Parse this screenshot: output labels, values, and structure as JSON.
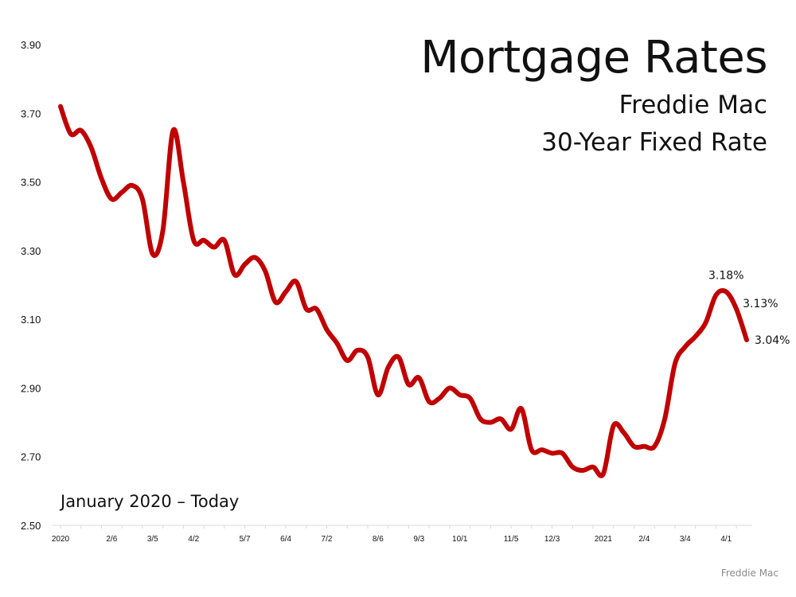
{
  "header": {
    "title": "Mortgage Rates",
    "subtitle_line1": "Freddie Mac",
    "subtitle_line2": "30-Year Fixed Rate"
  },
  "note": "January 2020 – Today",
  "source": "Freddie Mac",
  "colors": {
    "line": "#c00000",
    "axis": "#d9d9d9",
    "text": "#111111"
  },
  "chart_data": {
    "type": "line",
    "title": "Mortgage Rates",
    "subtitle": "Freddie Mac 30-Year Fixed Rate",
    "xlabel": "",
    "ylabel": "",
    "ylim": [
      2.5,
      3.9
    ],
    "yticks": [
      2.5,
      2.7,
      2.9,
      3.1,
      3.3,
      3.5,
      3.7,
      3.9
    ],
    "ytick_labels": [
      "2.50",
      "2.70",
      "2.90",
      "3.10",
      "3.30",
      "3.50",
      "3.70",
      "3.90"
    ],
    "grid": false,
    "legend": "none",
    "xtick_labels": [
      {
        "label": "2020",
        "index": 0
      },
      {
        "label": "2/6",
        "index": 5
      },
      {
        "label": "3/5",
        "index": 9
      },
      {
        "label": "4/2",
        "index": 13
      },
      {
        "label": "5/7",
        "index": 18
      },
      {
        "label": "6/4",
        "index": 22
      },
      {
        "label": "7/2",
        "index": 26
      },
      {
        "label": "8/6",
        "index": 31
      },
      {
        "label": "9/3",
        "index": 35
      },
      {
        "label": "10/1",
        "index": 39
      },
      {
        "label": "11/5",
        "index": 44
      },
      {
        "label": "12/3",
        "index": 48
      },
      {
        "label": "2021",
        "index": 53
      },
      {
        "label": "2/4",
        "index": 57
      },
      {
        "label": "3/4",
        "index": 61
      },
      {
        "label": "4/1",
        "index": 65
      }
    ],
    "series": [
      {
        "values": [
          3.72,
          3.64,
          3.65,
          3.6,
          3.51,
          3.45,
          3.47,
          3.49,
          3.45,
          3.29,
          3.36,
          3.65,
          3.5,
          3.33,
          3.33,
          3.31,
          3.33,
          3.23,
          3.26,
          3.28,
          3.24,
          3.15,
          3.18,
          3.21,
          3.13,
          3.13,
          3.07,
          3.03,
          2.98,
          3.01,
          2.99,
          2.88,
          2.96,
          2.99,
          2.91,
          2.93,
          2.86,
          2.87,
          2.9,
          2.88,
          2.87,
          2.81,
          2.8,
          2.81,
          2.78,
          2.84,
          2.72,
          2.72,
          2.71,
          2.71,
          2.67,
          2.66,
          2.67,
          2.65,
          2.79,
          2.77,
          2.73,
          2.73,
          2.73,
          2.81,
          2.97,
          3.02,
          3.05,
          3.09,
          3.17,
          3.18,
          3.13,
          3.04
        ]
      }
    ],
    "annotations": [
      {
        "text": "3.18%",
        "index": 65,
        "value": 3.18
      },
      {
        "text": "3.13%",
        "index": 66,
        "value": 3.13
      },
      {
        "text": "3.04%",
        "index": 67,
        "value": 3.04
      }
    ]
  }
}
